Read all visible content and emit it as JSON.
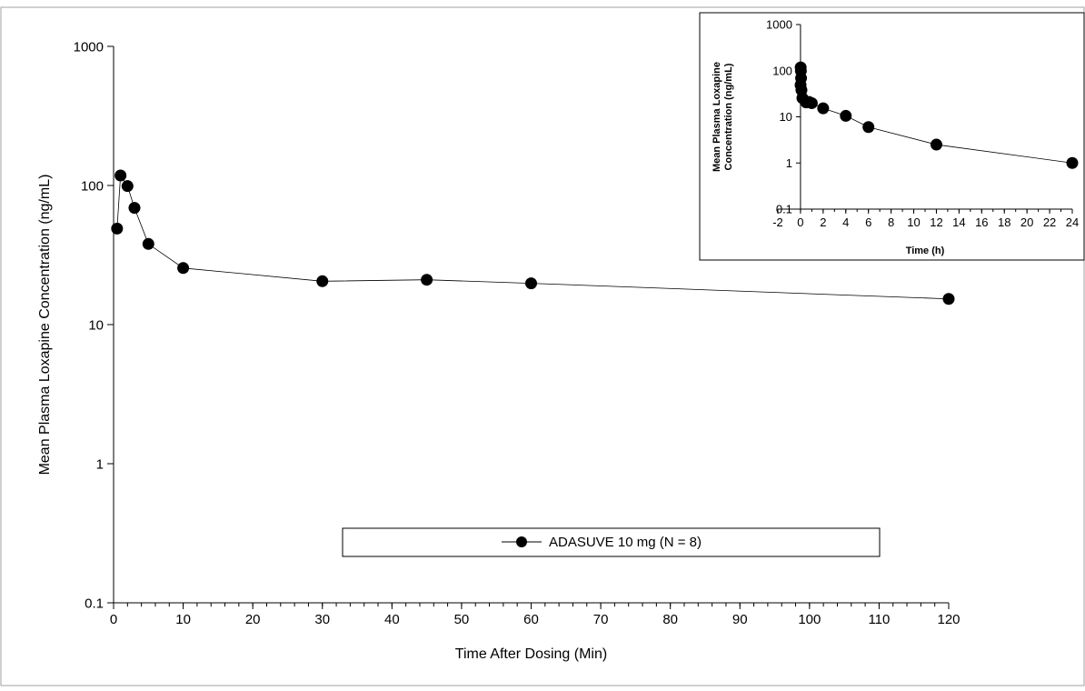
{
  "chart_data": [
    {
      "type": "line",
      "scale": {
        "y": "log",
        "x": "linear"
      },
      "xlabel": "Time After Dosing (Min)",
      "ylabel": "Mean Plasma Loxapine Concentration (ng/mL)",
      "xlim": [
        0,
        120
      ],
      "ylim": [
        0.1,
        1000
      ],
      "x_ticks": [
        "0",
        "10",
        "20",
        "30",
        "40",
        "50",
        "60",
        "70",
        "80",
        "90",
        "100",
        "110",
        "120"
      ],
      "y_ticks": [
        "0.1",
        "1",
        "10",
        "100",
        "1000"
      ],
      "grid": false,
      "legend": {
        "placement": "bottom-center"
      },
      "series": [
        {
          "name": "ADASUVE 10 mg (N = 8)",
          "marker": "filled-circle",
          "color": "#000000",
          "x": [
            0.5,
            1,
            2,
            3,
            5,
            10,
            30,
            45,
            60,
            120
          ],
          "y": [
            49,
            118,
            99,
            69,
            38,
            25.5,
            20.5,
            21,
            19.8,
            15.3
          ]
        }
      ]
    },
    {
      "type": "line",
      "role": "inset",
      "scale": {
        "y": "log",
        "x": "linear"
      },
      "xlabel": "Time (h)",
      "ylabel": "Mean Plasma Loxapine Concentration (ng/mL)",
      "ylabel_lines": [
        "Mean Plasma Loxapine",
        "Concentration (ng/mL)"
      ],
      "xlim": [
        -2,
        24
      ],
      "ylim": [
        0.1,
        1000
      ],
      "x_ticks": [
        "-2",
        "0",
        "2",
        "4",
        "6",
        "8",
        "10",
        "12",
        "14",
        "16",
        "18",
        "20",
        "22",
        "24"
      ],
      "y_ticks": [
        "0.1",
        "1",
        "10",
        "100",
        "1000"
      ],
      "grid": false,
      "series": [
        {
          "marker": "filled-circle",
          "color": "#000000",
          "x": [
            0.008,
            0.017,
            0.033,
            0.05,
            0.083,
            0.167,
            0.5,
            0.75,
            1,
            2,
            4,
            6,
            12,
            24
          ],
          "y": [
            49,
            118,
            99,
            69,
            38,
            25.5,
            20.5,
            21,
            19.8,
            15.3,
            10.5,
            6,
            2.5,
            1
          ]
        }
      ]
    }
  ]
}
